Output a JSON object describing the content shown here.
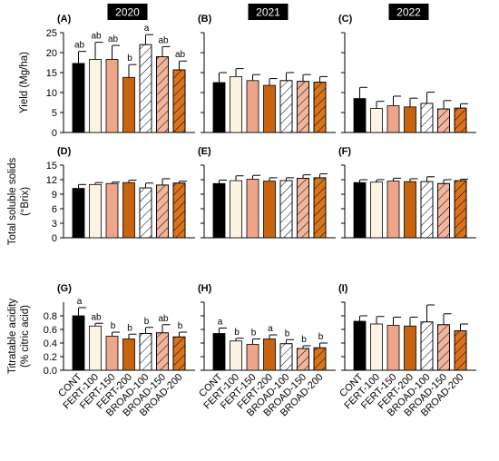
{
  "figure": {
    "years": [
      "2020",
      "2021",
      "2022"
    ],
    "categories": [
      "CONT",
      "FERT-100",
      "FERT-150",
      "FERT-200",
      "BROAD-100",
      "BROAD-150",
      "BROAD-200"
    ],
    "treatment_styles": [
      {
        "fill": "#000000",
        "hatch": false
      },
      {
        "fill": "#fdf3e3",
        "hatch": false
      },
      {
        "fill": "#eea58a",
        "hatch": false
      },
      {
        "fill": "#c86410",
        "hatch": false
      },
      {
        "fill": "#ffffff",
        "hatch": true
      },
      {
        "fill": "#f2b49b",
        "hatch": true
      },
      {
        "fill": "#d9731c",
        "hatch": true
      }
    ]
  },
  "chart_data": [
    {
      "type": "bar",
      "panel_label": "(A)",
      "year": "2020",
      "row": 0,
      "col": 0,
      "ylabel": "Yield (Mg/ha)",
      "ylim": [
        0,
        25
      ],
      "yticks": [
        "0",
        "5",
        "10",
        "15",
        "20",
        "25"
      ],
      "categories": [
        "CONT",
        "FERT-100",
        "FERT-150",
        "FERT-200",
        "BROAD-100",
        "BROAD-150",
        "BROAD-200"
      ],
      "values": [
        17.3,
        18.3,
        18.3,
        13.8,
        22.0,
        19.0,
        15.7
      ],
      "errors": [
        3.0,
        4.3,
        3.5,
        3.2,
        2.5,
        2.5,
        2.2
      ],
      "annotations": [
        "ab",
        "ab",
        "ab",
        "b",
        "a",
        "ab",
        "ab"
      ]
    },
    {
      "type": "bar",
      "panel_label": "(B)",
      "year": "2021",
      "row": 0,
      "col": 1,
      "ylim": [
        0,
        25
      ],
      "categories": [
        "CONT",
        "FERT-100",
        "FERT-150",
        "FERT-200",
        "BROAD-100",
        "BROAD-150",
        "BROAD-200"
      ],
      "values": [
        12.5,
        14.0,
        13.0,
        11.8,
        13.0,
        12.8,
        12.6
      ],
      "errors": [
        2.5,
        2.0,
        1.5,
        1.7,
        2.0,
        1.7,
        1.4
      ],
      "annotations": []
    },
    {
      "type": "bar",
      "panel_label": "(C)",
      "year": "2022",
      "row": 0,
      "col": 2,
      "ylim": [
        0,
        25
      ],
      "categories": [
        "CONT",
        "FERT-100",
        "FERT-150",
        "FERT-200",
        "BROAD-100",
        "BROAD-150",
        "BROAD-200"
      ],
      "values": [
        8.5,
        6.0,
        6.7,
        6.4,
        7.3,
        5.9,
        6.1
      ],
      "errors": [
        2.8,
        1.8,
        2.4,
        2.2,
        2.8,
        2.1,
        1.1
      ],
      "annotations": []
    },
    {
      "type": "bar",
      "panel_label": "(D)",
      "row": 1,
      "col": 0,
      "ylabel": "Total soluble solids",
      "ylabel2": "(°Brix)",
      "ylim": [
        0,
        15
      ],
      "yticks": [
        "0",
        "3",
        "6",
        "9",
        "12",
        "15"
      ],
      "categories": [
        "CONT",
        "FERT-100",
        "FERT-150",
        "FERT-200",
        "BROAD-100",
        "BROAD-150",
        "BROAD-200"
      ],
      "values": [
        10.2,
        11.0,
        11.2,
        11.4,
        10.3,
        10.9,
        11.3
      ],
      "errors": [
        0.8,
        0.4,
        0.3,
        0.5,
        1.0,
        1.3,
        0.4
      ],
      "annotations": []
    },
    {
      "type": "bar",
      "panel_label": "(E)",
      "row": 1,
      "col": 1,
      "ylim": [
        0,
        15
      ],
      "categories": [
        "CONT",
        "FERT-100",
        "FERT-150",
        "FERT-200",
        "BROAD-100",
        "BROAD-150",
        "BROAD-200"
      ],
      "values": [
        11.2,
        11.8,
        12.1,
        11.7,
        11.8,
        12.3,
        12.4
      ],
      "errors": [
        0.7,
        1.0,
        0.8,
        0.7,
        0.6,
        0.7,
        0.8
      ],
      "annotations": []
    },
    {
      "type": "bar",
      "panel_label": "(F)",
      "row": 1,
      "col": 2,
      "ylim": [
        0,
        15
      ],
      "categories": [
        "CONT",
        "FERT-100",
        "FERT-150",
        "FERT-200",
        "BROAD-100",
        "BROAD-150",
        "BROAD-200"
      ],
      "values": [
        11.4,
        11.5,
        11.7,
        11.6,
        11.6,
        11.2,
        11.8
      ],
      "errors": [
        0.6,
        0.5,
        0.6,
        0.6,
        1.0,
        0.8,
        0.3
      ],
      "annotations": []
    },
    {
      "type": "bar",
      "panel_label": "(G)",
      "row": 2,
      "col": 0,
      "ylabel": "Titratable acidity",
      "ylabel2": "(% citric acid)",
      "ylim": [
        0,
        1.0
      ],
      "yticks": [
        "0.0",
        "0.2",
        "0.4",
        "0.6",
        "0.8"
      ],
      "categories": [
        "CONT",
        "FERT-100",
        "FERT-150",
        "FERT-200",
        "BROAD-100",
        "BROAD-150",
        "BROAD-200"
      ],
      "values": [
        0.8,
        0.65,
        0.5,
        0.46,
        0.54,
        0.55,
        0.49
      ],
      "errors": [
        0.12,
        0.04,
        0.06,
        0.07,
        0.09,
        0.12,
        0.07
      ],
      "annotations": [
        "a",
        "ab",
        "b",
        "b",
        "b",
        "ab",
        "b"
      ]
    },
    {
      "type": "bar",
      "panel_label": "(H)",
      "row": 2,
      "col": 1,
      "ylim": [
        0,
        1.0
      ],
      "categories": [
        "CONT",
        "FERT-100",
        "FERT-150",
        "FERT-200",
        "BROAD-100",
        "BROAD-150",
        "BROAD-200"
      ],
      "values": [
        0.54,
        0.43,
        0.38,
        0.46,
        0.39,
        0.32,
        0.33
      ],
      "errors": [
        0.08,
        0.04,
        0.08,
        0.06,
        0.06,
        0.04,
        0.07
      ],
      "annotations": [
        "a",
        "b",
        "b",
        "a",
        "b",
        "b",
        "b"
      ]
    },
    {
      "type": "bar",
      "panel_label": "(I)",
      "row": 2,
      "col": 2,
      "ylim": [
        0,
        1.0
      ],
      "categories": [
        "CONT",
        "FERT-100",
        "FERT-150",
        "FERT-200",
        "BROAD-100",
        "BROAD-150",
        "BROAD-200"
      ],
      "values": [
        0.72,
        0.68,
        0.66,
        0.65,
        0.71,
        0.67,
        0.58
      ],
      "errors": [
        0.08,
        0.11,
        0.12,
        0.13,
        0.25,
        0.16,
        0.1
      ],
      "annotations": []
    }
  ]
}
